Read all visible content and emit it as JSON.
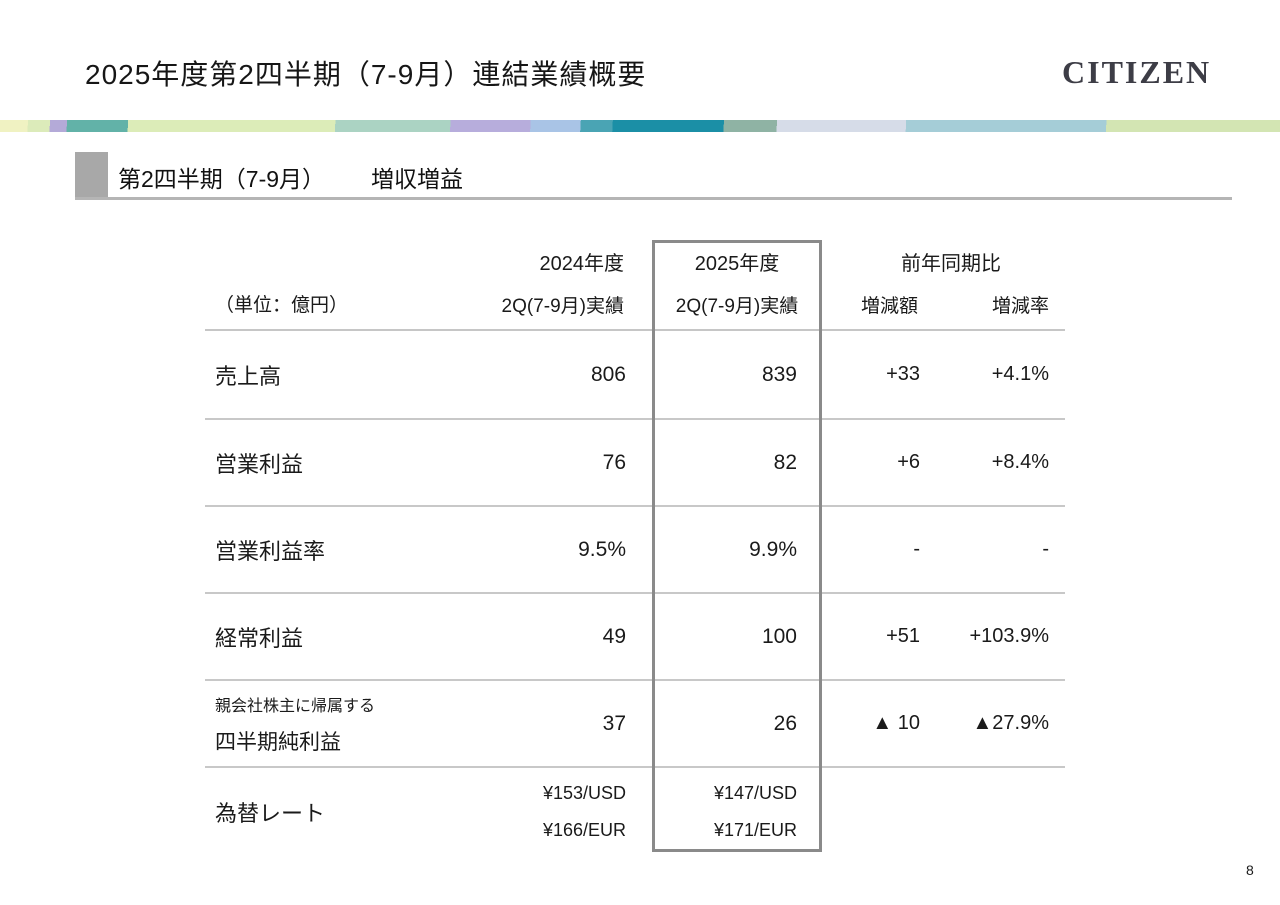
{
  "header": {
    "title": "2025年度第2四半期（7-9月）連結業績概要",
    "logo": "CITIZEN"
  },
  "section": {
    "heading_left": "第2四半期（7-9月）",
    "heading_right": "増収増益"
  },
  "table": {
    "unit_label": "（単位：億円）",
    "columns": {
      "y2024": {
        "year": "2024年度",
        "sub": "2Q(7-9月)実績"
      },
      "y2025": {
        "year": "2025年度",
        "sub": "2Q(7-9月)実績"
      },
      "yoy": {
        "label": "前年同期比",
        "amount": "増減額",
        "rate": "増減率"
      }
    },
    "rows": [
      {
        "label": "売上高",
        "v2024": "806",
        "v2025": "839",
        "diff": "+33",
        "rate": "+4.1%"
      },
      {
        "label": "営業利益",
        "v2024": "76",
        "v2025": "82",
        "diff": "+6",
        "rate": "+8.4%"
      },
      {
        "label": "営業利益率",
        "v2024": "9.5%",
        "v2025": "9.9%",
        "diff": "-",
        "rate": "-"
      },
      {
        "label": "経常利益",
        "v2024": "49",
        "v2025": "100",
        "diff": "+51",
        "rate": "+103.9%"
      },
      {
        "label_line1": "親会社株主に帰属する",
        "label_line2": "四半期純利益",
        "v2024": "37",
        "v2025": "26",
        "diff": "▲ 10",
        "rate": "▲27.9%"
      },
      {
        "label": "為替レート",
        "v2024_usd": "¥153/USD",
        "v2024_eur": "¥166/EUR",
        "v2025_usd": "¥147/USD",
        "v2025_eur": "¥171/EUR"
      }
    ]
  },
  "footer": {
    "page_number": "8"
  },
  "colors": {
    "accent_teal": "#1b8fa6",
    "line_gray": "#c8c8c8",
    "box_border": "#8a8a8a",
    "marker_gray": "#a8a8a8"
  }
}
